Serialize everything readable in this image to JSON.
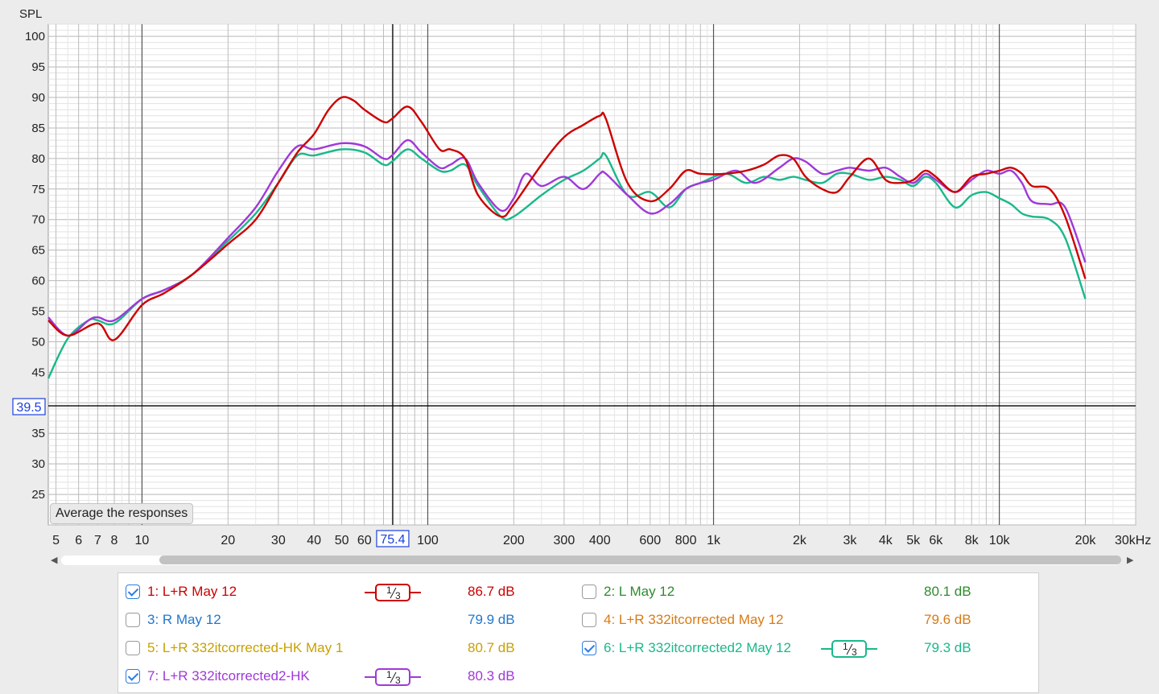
{
  "chart_data": {
    "type": "line",
    "ylabel": "SPL",
    "x_scale": "log",
    "xlim": [
      4.7,
      30000
    ],
    "ylim": [
      20,
      102
    ],
    "y_ticks": [
      25,
      30,
      35,
      45,
      50,
      55,
      60,
      65,
      70,
      75,
      80,
      85,
      90,
      95,
      100
    ],
    "x_ticks": [
      {
        "v": 5,
        "l": "5"
      },
      {
        "v": 6,
        "l": "6"
      },
      {
        "v": 7,
        "l": "7"
      },
      {
        "v": 8,
        "l": "8"
      },
      {
        "v": 10,
        "l": "10"
      },
      {
        "v": 20,
        "l": "20"
      },
      {
        "v": 30,
        "l": "30"
      },
      {
        "v": 40,
        "l": "40"
      },
      {
        "v": 50,
        "l": "50"
      },
      {
        "v": 60,
        "l": "60"
      },
      {
        "v": 100,
        "l": "100"
      },
      {
        "v": 200,
        "l": "200"
      },
      {
        "v": 300,
        "l": "300"
      },
      {
        "v": 400,
        "l": "400"
      },
      {
        "v": 600,
        "l": "600"
      },
      {
        "v": 800,
        "l": "800"
      },
      {
        "v": 1000,
        "l": "1k"
      },
      {
        "v": 2000,
        "l": "2k"
      },
      {
        "v": 3000,
        "l": "3k"
      },
      {
        "v": 4000,
        "l": "4k"
      },
      {
        "v": 5000,
        "l": "5k"
      },
      {
        "v": 6000,
        "l": "6k"
      },
      {
        "v": 8000,
        "l": "8k"
      },
      {
        "v": 10000,
        "l": "10k"
      },
      {
        "v": 20000,
        "l": "20k"
      },
      {
        "v": 30000,
        "l": "30kHz"
      }
    ],
    "cursor": {
      "x": 75.4,
      "y": 39.5,
      "x_label": "75.4",
      "y_label": "39.5"
    },
    "grid": true,
    "series": [
      {
        "name": "1: L+R May 12",
        "color": "#cc0000",
        "x": [
          4.7,
          5.5,
          7,
          8,
          10,
          12,
          15,
          20,
          25,
          30,
          35,
          40,
          45,
          50,
          55,
          60,
          70,
          75,
          85,
          95,
          110,
          120,
          135,
          150,
          180,
          200,
          250,
          300,
          350,
          400,
          420,
          500,
          600,
          700,
          800,
          900,
          1100,
          1300,
          1500,
          1700,
          1900,
          2100,
          2400,
          2700,
          3000,
          3500,
          4000,
          4500,
          5000,
          5500,
          6000,
          7000,
          8000,
          9000,
          10000,
          11000,
          12000,
          13000,
          15000,
          17000,
          20000
        ],
        "y": [
          53.5,
          51,
          53,
          50.3,
          56,
          58,
          61,
          66,
          70,
          76,
          81,
          84,
          88,
          90,
          89.5,
          88,
          86,
          86.5,
          88.5,
          86,
          81.5,
          81.5,
          80,
          74,
          70.5,
          72.5,
          79,
          83.5,
          85.5,
          87,
          86.5,
          76,
          73,
          75,
          78,
          77.5,
          77.5,
          78,
          79,
          80.5,
          80,
          77,
          75,
          74.5,
          77,
          80,
          76.5,
          76,
          76.5,
          78,
          77,
          74.5,
          77,
          77.5,
          78,
          78.5,
          77.5,
          75.5,
          75,
          70.5,
          60.3
        ]
      },
      {
        "name": "6: L+R 332itcorrected2 May 12",
        "color": "#1ab88a",
        "x": [
          4.7,
          5.5,
          6.5,
          7,
          8,
          10,
          12,
          15,
          20,
          25,
          30,
          35,
          40,
          50,
          60,
          70,
          75,
          85,
          95,
          110,
          120,
          135,
          150,
          180,
          200,
          250,
          300,
          350,
          400,
          420,
          500,
          600,
          700,
          800,
          900,
          1100,
          1300,
          1500,
          1700,
          1900,
          2100,
          2400,
          2700,
          3000,
          3500,
          4000,
          4500,
          5000,
          5500,
          6000,
          7000,
          8000,
          9000,
          10000,
          11000,
          12000,
          13000,
          15000,
          17000,
          20000
        ],
        "y": [
          44,
          50.5,
          53.5,
          53.5,
          53,
          57,
          58.5,
          61,
          66.5,
          71,
          76,
          80.5,
          80.5,
          81.5,
          81,
          79,
          79.5,
          81.5,
          80,
          78,
          78,
          79,
          75.5,
          70.5,
          70.5,
          74,
          76.5,
          78,
          80,
          80.5,
          74,
          74.5,
          72,
          75,
          76,
          77.5,
          76,
          77,
          76.5,
          77,
          76.5,
          76,
          77.5,
          77.5,
          76.5,
          77,
          76.5,
          75.5,
          77,
          76,
          72,
          74,
          74.5,
          73.5,
          72.5,
          71,
          70.5,
          70,
          67,
          57
        ]
      },
      {
        "name": "7: L+R 332itcorrected2-HK",
        "color": "#a038d8",
        "x": [
          4.7,
          5.5,
          6.5,
          7,
          8,
          10,
          12,
          15,
          20,
          25,
          30,
          35,
          40,
          50,
          60,
          70,
          75,
          85,
          95,
          110,
          120,
          135,
          150,
          180,
          200,
          220,
          250,
          300,
          350,
          400,
          420,
          500,
          600,
          700,
          800,
          900,
          1000,
          1200,
          1400,
          1700,
          1900,
          2100,
          2400,
          2700,
          3000,
          3500,
          4000,
          4500,
          5000,
          5500,
          6000,
          7000,
          8000,
          9000,
          10000,
          11000,
          12000,
          13000,
          15000,
          17000,
          20000
        ],
        "y": [
          54,
          51,
          53.5,
          54,
          53.5,
          57,
          58.5,
          61,
          67,
          72,
          78,
          82,
          81.5,
          82.5,
          82,
          80,
          80.5,
          83,
          81,
          78.5,
          79,
          80,
          76,
          71.5,
          73.5,
          77.5,
          75.5,
          77,
          75,
          77.5,
          77.5,
          74,
          71,
          72.5,
          75,
          76,
          76.5,
          78,
          76,
          78.5,
          80,
          79.5,
          77.5,
          78,
          78.5,
          78,
          78.5,
          77,
          76,
          77.5,
          76.5,
          74.5,
          76.5,
          78,
          77.5,
          78,
          76,
          73,
          72.5,
          72,
          63
        ]
      }
    ]
  },
  "average_button": {
    "label": "Average the responses"
  },
  "legend": {
    "items": [
      {
        "label": "1: L+R May 12",
        "value": "86.7 dB",
        "color": "#cc0000",
        "checked": true,
        "smoothing": "1/3"
      },
      {
        "label": "2: L May 12",
        "value": "80.1 dB",
        "color": "#2e8b2e",
        "checked": false,
        "smoothing": ""
      },
      {
        "label": "3: R May 12",
        "value": "79.9 dB",
        "color": "#2277cc",
        "checked": false,
        "smoothing": ""
      },
      {
        "label": "4: L+R 332itcorrected May 12",
        "value": "79.6 dB",
        "color": "#d97a14",
        "checked": false,
        "smoothing": ""
      },
      {
        "label": "5: L+R 332itcorrected-HK May 1",
        "value": "80.7 dB",
        "color": "#c9a000",
        "checked": false,
        "smoothing": ""
      },
      {
        "label": "6: L+R 332itcorrected2 May 12",
        "value": "79.3 dB",
        "color": "#1ab88a",
        "checked": true,
        "smoothing": "1/3"
      },
      {
        "label": "7: L+R 332itcorrected2-HK",
        "value": "80.3 dB",
        "color": "#a038d8",
        "checked": true,
        "smoothing": "1/3"
      }
    ]
  }
}
